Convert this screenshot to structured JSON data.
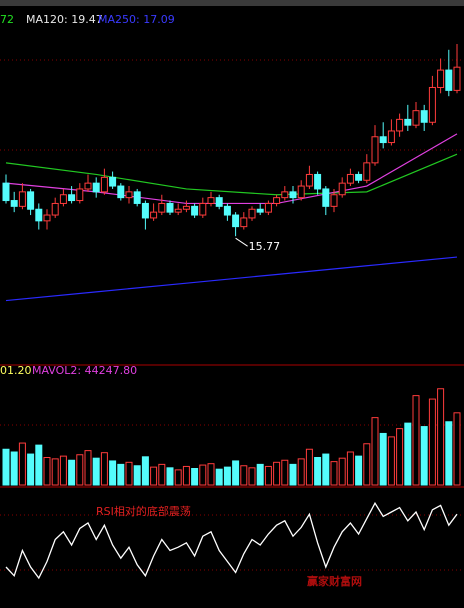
{
  "header": {
    "ma_partial": "72",
    "ma120": "MA120: 19.47",
    "ma250": "MA250: 17.09",
    "vol_partial": "01.20",
    "mavol2": "MAVOL2: 44247.80"
  },
  "watermark": "赢家财富网",
  "chart_data": [
    {
      "type": "candlestick",
      "up_color": "#ff3c3c",
      "down_color": "#54fcfc",
      "ylim": [
        11.5,
        23.4
      ],
      "min_label": 15.77,
      "open": [
        17.6,
        17.0,
        16.8,
        17.3,
        16.7,
        16.3,
        16.5,
        16.9,
        17.2,
        17.0,
        17.4,
        17.6,
        17.3,
        17.8,
        17.5,
        17.1,
        17.3,
        16.9,
        16.4,
        16.6,
        16.9,
        16.6,
        16.7,
        16.8,
        16.5,
        16.9,
        17.1,
        16.8,
        16.5,
        16.1,
        16.4,
        16.7,
        16.6,
        16.9,
        17.1,
        17.3,
        17.1,
        17.5,
        17.9,
        17.4,
        16.8,
        17.2,
        17.6,
        17.9,
        17.7,
        18.3,
        19.2,
        19.0,
        19.4,
        19.8,
        19.6,
        20.1,
        19.7,
        20.9,
        21.5,
        20.8
      ],
      "high": [
        17.9,
        17.3,
        17.6,
        17.4,
        16.9,
        16.7,
        17.1,
        17.4,
        17.5,
        17.6,
        17.9,
        17.8,
        18.1,
        18.0,
        17.6,
        17.5,
        17.4,
        17.0,
        16.9,
        17.2,
        17.0,
        16.9,
        17.0,
        16.9,
        17.1,
        17.3,
        17.2,
        16.9,
        16.6,
        16.6,
        16.8,
        16.9,
        17.0,
        17.2,
        17.5,
        17.5,
        17.7,
        18.2,
        18.0,
        17.5,
        17.4,
        17.8,
        18.1,
        18.0,
        18.6,
        19.6,
        19.7,
        19.8,
        20.0,
        20.3,
        20.4,
        20.3,
        21.3,
        21.9,
        22.2,
        22.4
      ],
      "low": [
        16.9,
        16.6,
        16.7,
        16.5,
        16.0,
        16.0,
        16.4,
        16.8,
        16.9,
        16.9,
        17.3,
        17.1,
        17.2,
        17.4,
        17.0,
        16.9,
        16.8,
        16.0,
        16.3,
        16.5,
        16.5,
        16.5,
        16.6,
        16.4,
        16.4,
        16.8,
        16.7,
        16.3,
        15.77,
        16.0,
        16.3,
        16.5,
        16.5,
        16.8,
        17.0,
        16.9,
        17.0,
        17.4,
        17.2,
        16.5,
        16.6,
        17.1,
        17.5,
        17.6,
        17.6,
        18.2,
        18.8,
        18.9,
        19.2,
        19.4,
        19.5,
        19.4,
        19.6,
        20.7,
        20.6,
        20.7
      ],
      "close": [
        17.0,
        16.8,
        17.3,
        16.7,
        16.3,
        16.5,
        16.9,
        17.2,
        17.0,
        17.4,
        17.6,
        17.3,
        17.8,
        17.5,
        17.1,
        17.3,
        16.9,
        16.4,
        16.6,
        16.9,
        16.6,
        16.7,
        16.8,
        16.5,
        16.9,
        17.1,
        16.8,
        16.5,
        16.1,
        16.4,
        16.7,
        16.6,
        16.9,
        17.1,
        17.3,
        17.1,
        17.5,
        17.9,
        17.4,
        16.8,
        17.2,
        17.6,
        17.9,
        17.7,
        18.3,
        19.2,
        19.0,
        19.4,
        19.8,
        19.6,
        20.1,
        19.7,
        20.9,
        21.5,
        20.8,
        21.6
      ],
      "lines": [
        {
          "color": "#2a2aff",
          "x": [
            0,
            11,
            22,
            33,
            44,
            55
          ],
          "values": [
            13.55,
            13.85,
            14.15,
            14.45,
            14.75,
            15.05
          ]
        },
        {
          "color": "#22c822",
          "x": [
            0,
            11,
            22,
            33,
            44,
            55
          ],
          "values": [
            18.3,
            17.9,
            17.4,
            17.2,
            17.3,
            18.6
          ]
        },
        {
          "color": "#e040e0",
          "x": [
            0,
            11,
            22,
            33,
            44,
            55
          ],
          "values": [
            17.6,
            17.3,
            16.9,
            16.9,
            17.5,
            19.3
          ]
        }
      ]
    },
    {
      "type": "bar",
      "ylim": [
        0,
        160000
      ],
      "values": [
        52000,
        48000,
        61000,
        45000,
        58000,
        40000,
        38000,
        42000,
        36000,
        44000,
        50000,
        39000,
        47000,
        35000,
        30000,
        33000,
        28000,
        41000,
        26000,
        30000,
        25000,
        22000,
        27000,
        24000,
        29000,
        31000,
        23000,
        26000,
        35000,
        28000,
        25000,
        30000,
        27000,
        33000,
        36000,
        30000,
        38000,
        52000,
        40000,
        45000,
        34000,
        39000,
        48000,
        42000,
        60000,
        98000,
        75000,
        70000,
        82000,
        90000,
        130000,
        85000,
        125000,
        140000,
        92000,
        105000
      ]
    },
    {
      "type": "line",
      "color": "#ffffff",
      "ylim": [
        0,
        100
      ],
      "annotation": "RSI相对的底部震荡",
      "values": [
        30,
        22,
        45,
        30,
        20,
        35,
        55,
        62,
        50,
        65,
        70,
        55,
        68,
        50,
        38,
        48,
        32,
        22,
        40,
        55,
        45,
        48,
        52,
        40,
        58,
        62,
        45,
        35,
        25,
        42,
        55,
        50,
        60,
        68,
        72,
        58,
        66,
        78,
        52,
        30,
        48,
        62,
        70,
        60,
        74,
        88,
        76,
        80,
        84,
        72,
        80,
        64,
        82,
        86,
        68,
        78
      ]
    }
  ]
}
